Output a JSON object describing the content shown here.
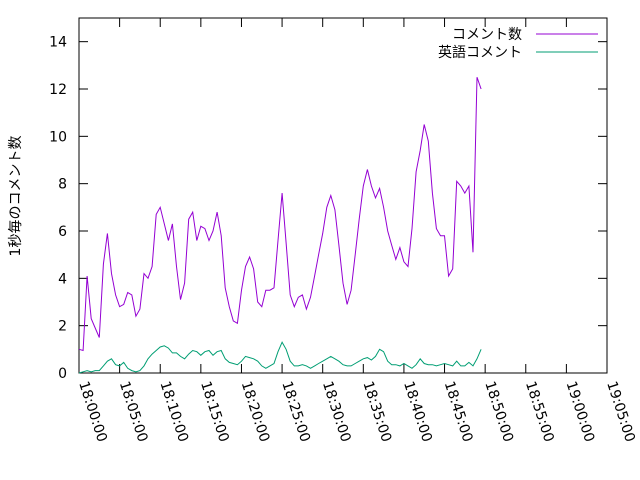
{
  "chart_data": {
    "type": "line",
    "title": "",
    "xlabel": "",
    "ylabel": "1秒毎のコメント数",
    "ylim": [
      0,
      15
    ],
    "yticks": [
      0,
      2,
      4,
      6,
      8,
      10,
      12,
      14
    ],
    "xlim_minutes": [
      0,
      65
    ],
    "xtick_labels": [
      "18:00:00",
      "18:05:00",
      "18:10:00",
      "18:15:00",
      "18:20:00",
      "18:25:00",
      "18:30:00",
      "18:35:00",
      "18:40:00",
      "18:45:00",
      "18:50:00",
      "18:55:00",
      "19:00:00",
      "19:05:00"
    ],
    "x_start": "18:00:00",
    "x_step_seconds": 30,
    "grid": false,
    "legend_position": "top-right",
    "series": [
      {
        "name": "コメント数",
        "color": "#9400d3",
        "values": [
          1.0,
          0.95,
          4.1,
          2.3,
          1.9,
          1.5,
          4.6,
          5.9,
          4.2,
          3.3,
          2.8,
          2.9,
          3.4,
          3.3,
          2.4,
          2.7,
          4.2,
          4.0,
          4.5,
          6.7,
          7.0,
          6.3,
          5.6,
          6.3,
          4.5,
          3.1,
          3.8,
          6.5,
          6.8,
          5.6,
          6.2,
          6.1,
          5.6,
          6.0,
          6.8,
          5.8,
          3.6,
          2.8,
          2.2,
          2.1,
          3.5,
          4.5,
          4.9,
          4.4,
          3.0,
          2.8,
          3.5,
          3.5,
          3.6,
          5.6,
          7.6,
          5.5,
          3.3,
          2.8,
          3.2,
          3.3,
          2.7,
          3.2,
          4.1,
          5.0,
          5.9,
          7.0,
          7.5,
          6.9,
          5.4,
          3.8,
          2.9,
          3.5,
          5.0,
          6.5,
          7.9,
          8.6,
          7.9,
          7.4,
          7.8,
          7.0,
          6.0,
          5.4,
          4.8,
          5.3,
          4.7,
          4.5,
          6.1,
          8.5,
          9.4,
          10.5,
          9.8,
          7.6,
          6.1,
          5.8,
          5.8,
          4.1,
          4.4,
          8.1,
          7.9,
          7.6,
          7.9,
          5.1,
          12.5,
          12.0
        ]
      },
      {
        "name": "英語コメント",
        "color": "#009e73",
        "values": [
          0.0,
          0.05,
          0.1,
          0.05,
          0.1,
          0.1,
          0.3,
          0.5,
          0.6,
          0.35,
          0.3,
          0.45,
          0.2,
          0.1,
          0.05,
          0.1,
          0.3,
          0.6,
          0.8,
          0.95,
          1.1,
          1.15,
          1.05,
          0.85,
          0.85,
          0.7,
          0.6,
          0.8,
          0.95,
          0.9,
          0.75,
          0.9,
          0.95,
          0.75,
          0.9,
          0.95,
          0.6,
          0.45,
          0.4,
          0.35,
          0.5,
          0.7,
          0.65,
          0.6,
          0.5,
          0.3,
          0.2,
          0.3,
          0.4,
          0.9,
          1.3,
          1.0,
          0.5,
          0.3,
          0.3,
          0.35,
          0.3,
          0.2,
          0.3,
          0.4,
          0.5,
          0.6,
          0.7,
          0.6,
          0.5,
          0.35,
          0.3,
          0.3,
          0.4,
          0.5,
          0.6,
          0.65,
          0.55,
          0.7,
          1.0,
          0.9,
          0.5,
          0.35,
          0.35,
          0.3,
          0.4,
          0.3,
          0.2,
          0.35,
          0.6,
          0.4,
          0.35,
          0.35,
          0.3,
          0.35,
          0.4,
          0.35,
          0.3,
          0.5,
          0.3,
          0.3,
          0.45,
          0.3,
          0.6,
          1.0
        ]
      }
    ]
  }
}
